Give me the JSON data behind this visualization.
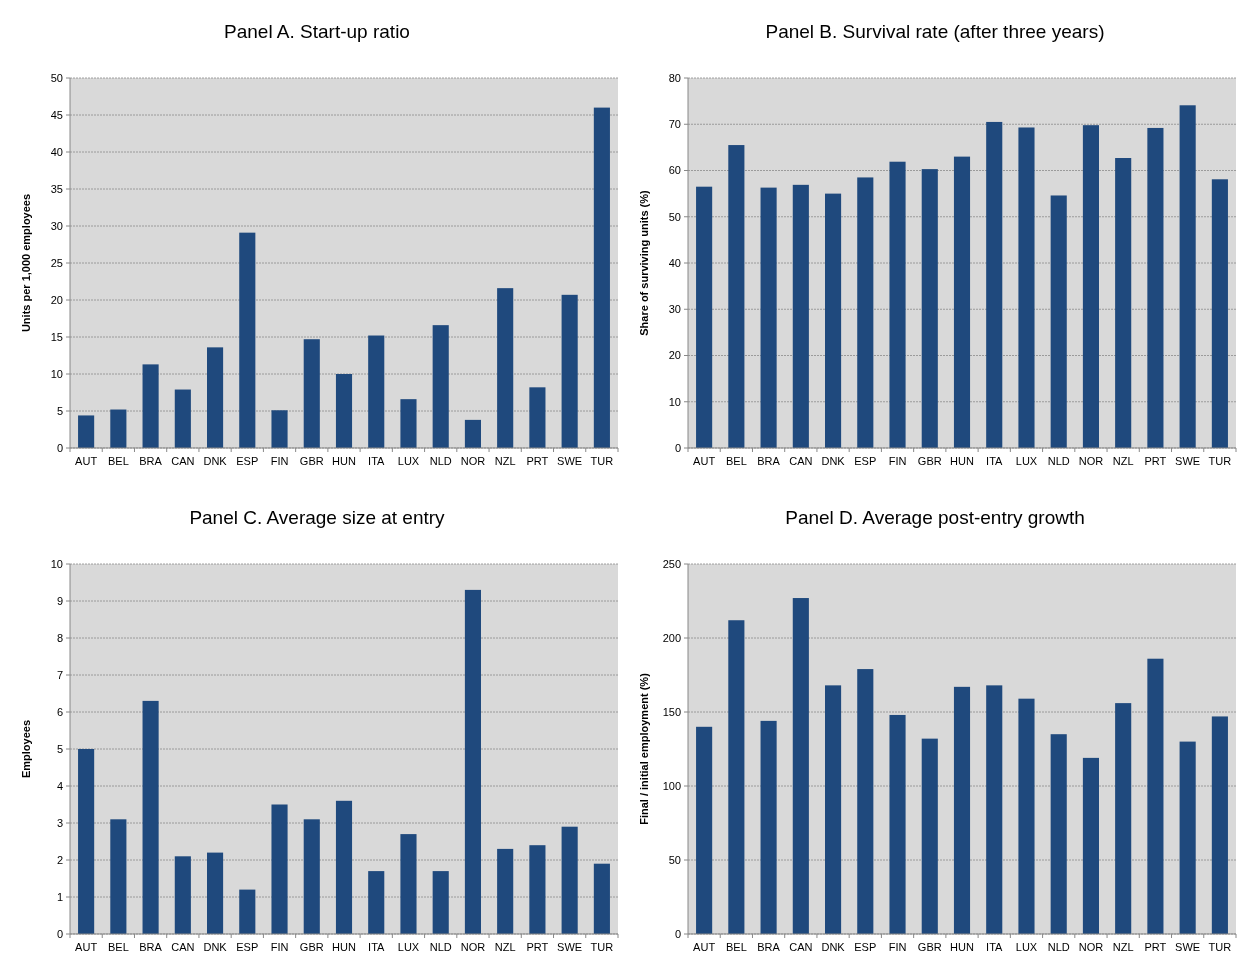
{
  "chart_data": [
    {
      "type": "bar",
      "title": "Panel A. Start-up ratio",
      "ylabel": "Units per 1,000 employees",
      "categories": [
        "AUT",
        "BEL",
        "BRA",
        "CAN",
        "DNK",
        "ESP",
        "FIN",
        "GBR",
        "HUN",
        "ITA",
        "LUX",
        "NLD",
        "NOR",
        "NZL",
        "PRT",
        "SWE",
        "TUR"
      ],
      "values": [
        4.4,
        5.2,
        11.3,
        7.9,
        13.6,
        29.1,
        5.1,
        14.7,
        10.0,
        15.2,
        6.6,
        16.6,
        3.8,
        21.6,
        8.2,
        20.7,
        46.0
      ],
      "color": "#1f497d",
      "ylim": [
        0,
        50
      ],
      "yticks": [
        0,
        5,
        10,
        15,
        20,
        25,
        30,
        35,
        40,
        45,
        50
      ],
      "grid": "y"
    },
    {
      "type": "bar",
      "title": "Panel B. Survival rate (after three years)",
      "ylabel": "Share of surviving units (%)",
      "categories": [
        "AUT",
        "BEL",
        "BRA",
        "CAN",
        "DNK",
        "ESP",
        "FIN",
        "GBR",
        "HUN",
        "ITA",
        "LUX",
        "NLD",
        "NOR",
        "NZL",
        "PRT",
        "SWE",
        "TUR"
      ],
      "values": [
        56.5,
        65.5,
        56.3,
        56.9,
        55.0,
        58.5,
        61.9,
        60.3,
        63.0,
        70.5,
        69.3,
        54.6,
        69.8,
        62.7,
        69.2,
        74.1,
        58.1
      ],
      "color": "#1f497d",
      "ylim": [
        0,
        80
      ],
      "yticks": [
        0,
        10,
        20,
        30,
        40,
        50,
        60,
        70,
        80
      ],
      "grid": "y"
    },
    {
      "type": "bar",
      "title": "Panel C. Average size at entry",
      "ylabel": "Employees",
      "categories": [
        "AUT",
        "BEL",
        "BRA",
        "CAN",
        "DNK",
        "ESP",
        "FIN",
        "GBR",
        "HUN",
        "ITA",
        "LUX",
        "NLD",
        "NOR",
        "NZL",
        "PRT",
        "SWE",
        "TUR"
      ],
      "values": [
        5.0,
        3.1,
        6.3,
        2.1,
        2.2,
        1.2,
        3.5,
        3.1,
        3.6,
        1.7,
        2.7,
        1.7,
        9.3,
        2.3,
        2.4,
        2.9,
        1.9
      ],
      "color": "#1f497d",
      "ylim": [
        0,
        10
      ],
      "yticks": [
        0,
        1,
        2,
        3,
        4,
        5,
        6,
        7,
        8,
        9,
        10
      ],
      "grid": "y"
    },
    {
      "type": "bar",
      "title": "Panel D. Average post-entry growth",
      "ylabel": "Final / initial employment (%)",
      "categories": [
        "AUT",
        "BEL",
        "BRA",
        "CAN",
        "DNK",
        "ESP",
        "FIN",
        "GBR",
        "HUN",
        "ITA",
        "LUX",
        "NLD",
        "NOR",
        "NZL",
        "PRT",
        "SWE",
        "TUR"
      ],
      "values": [
        140,
        212,
        144,
        227,
        168,
        179,
        148,
        132,
        167,
        168,
        159,
        135,
        119,
        156,
        186,
        130,
        147
      ],
      "color": "#1f497d",
      "ylim": [
        0,
        250
      ],
      "yticks": [
        0,
        50,
        100,
        150,
        200,
        250
      ],
      "grid": "y"
    }
  ]
}
